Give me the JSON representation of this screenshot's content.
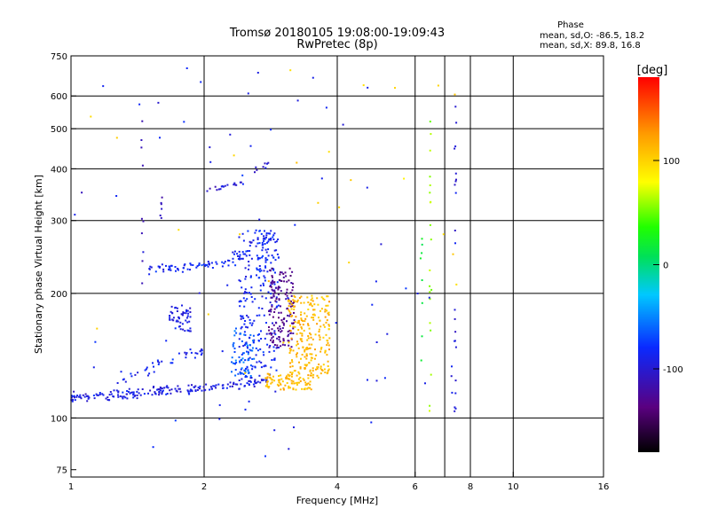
{
  "chart_data": {
    "type": "scatter",
    "title": "Tromsø 20180105 19:08:00-19:09:43",
    "subtitle": "RwPretec (8p)",
    "xlabel": "Frequency [MHz]",
    "ylabel": "Stationary phase Virtual Height [km]",
    "x_scale": "log",
    "y_scale": "log",
    "xlim": [
      1,
      16
    ],
    "ylim": [
      72,
      750
    ],
    "x_ticks": [
      1,
      2,
      4,
      6,
      8,
      10,
      16
    ],
    "x_tick_labels": [
      "1",
      "2",
      "4",
      "6",
      "8",
      "10",
      "16"
    ],
    "y_ticks": [
      75,
      100,
      200,
      300,
      400,
      500,
      600,
      750
    ],
    "y_tick_labels": [
      "75",
      "100",
      "200",
      "300",
      "400",
      "500",
      "600",
      "750"
    ],
    "v_grid": [
      2,
      4,
      6,
      7,
      8,
      10
    ],
    "h_grid": [
      100,
      200,
      300,
      400,
      500,
      600
    ],
    "grid": true,
    "stats": {
      "title": "Phase",
      "line_o": "mean, sd,O: -86.5, 18.2",
      "line_x": "mean, sd,X:  89.8, 16.8"
    },
    "colorbar": {
      "label": "[deg]",
      "range": [
        -180,
        180
      ],
      "ticks": [
        100,
        0,
        -100
      ],
      "tick_labels": [
        "100",
        "0",
        "-100"
      ],
      "colormap": "rainbow (black → purple → blue → cyan → green → yellow → orange → red)"
    },
    "clusters": [
      {
        "type": "trace",
        "from": [
          1.0,
          112
        ],
        "to": [
          2.0,
          118
        ],
        "n": 140,
        "spread": 0.035,
        "phase": -95
      },
      {
        "type": "trace",
        "from": [
          2.0,
          118
        ],
        "to": [
          2.8,
          124
        ],
        "n": 60,
        "spread": 0.03,
        "phase": -95
      },
      {
        "type": "trace",
        "from": [
          1.5,
          228
        ],
        "to": [
          2.25,
          236
        ],
        "n": 60,
        "spread": 0.03,
        "phase": -85
      },
      {
        "type": "trace",
        "from": [
          2.25,
          236
        ],
        "to": [
          2.9,
          278
        ],
        "n": 45,
        "spread": 0.06,
        "phase": -85
      },
      {
        "type": "trace",
        "from": [
          2.0,
          352
        ],
        "to": [
          2.45,
          372
        ],
        "n": 18,
        "spread": 0.02,
        "phase": -100
      },
      {
        "type": "trace",
        "from": [
          2.6,
          395
        ],
        "to": [
          2.8,
          410
        ],
        "n": 8,
        "spread": 0.02,
        "phase": -100
      },
      {
        "type": "trace",
        "from": [
          1.25,
          122
        ],
        "to": [
          2.0,
          145
        ],
        "n": 40,
        "spread": 0.05,
        "phase": -88
      },
      {
        "type": "box",
        "x": [
          1.67,
          1.87
        ],
        "y": [
          162,
          188
        ],
        "n": 55,
        "phase": -95
      },
      {
        "type": "box",
        "x": [
          2.4,
          2.95
        ],
        "y": [
          125,
          285
        ],
        "n": 230,
        "phase": -85
      },
      {
        "type": "box",
        "x": [
          2.8,
          3.2
        ],
        "y": [
          148,
          230
        ],
        "n": 150,
        "phase": -130
      },
      {
        "type": "box",
        "x": [
          2.75,
          3.5
        ],
        "y": [
          117,
          128
        ],
        "n": 90,
        "phase": 110
      },
      {
        "type": "box",
        "x": [
          3.1,
          3.85
        ],
        "y": [
          125,
          198
        ],
        "n": 240,
        "phase": 112
      },
      {
        "type": "box",
        "x": [
          2.3,
          2.6
        ],
        "y": [
          125,
          165
        ],
        "n": 60,
        "phase": -60
      },
      {
        "type": "column",
        "x": 7.4,
        "y": [
          100,
          620
        ],
        "n": 22,
        "phase": -95
      },
      {
        "type": "column",
        "x": 6.5,
        "y": [
          100,
          620
        ],
        "n": 20,
        "phase": 60
      },
      {
        "type": "column",
        "x": 6.2,
        "y": [
          100,
          280
        ],
        "n": 8,
        "phase": 20
      },
      {
        "type": "column",
        "x": 1.45,
        "y": [
          200,
          580
        ],
        "n": 10,
        "phase": -110
      },
      {
        "type": "column",
        "x": 1.6,
        "y": [
          300,
          360
        ],
        "n": 6,
        "phase": -110
      },
      {
        "type": "sparse",
        "x": [
          1.0,
          7.6
        ],
        "y": [
          80,
          700
        ],
        "n": 70,
        "phase": -90
      },
      {
        "type": "sparse",
        "x": [
          1.0,
          7.6
        ],
        "y": [
          80,
          700
        ],
        "n": 25,
        "phase": 100
      }
    ]
  }
}
